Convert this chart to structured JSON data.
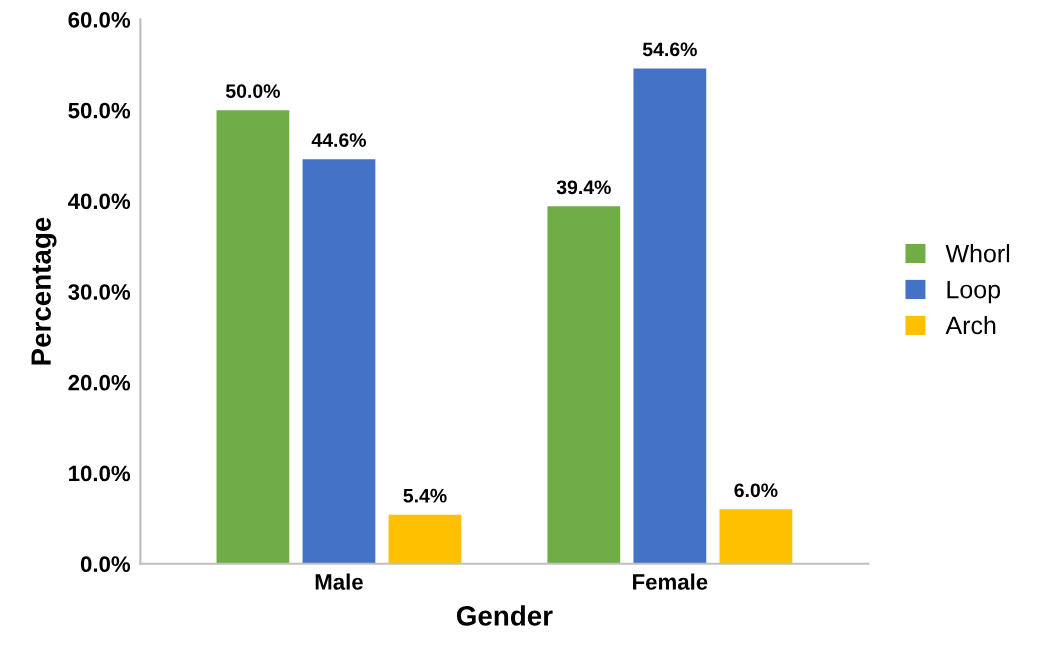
{
  "chart_data": {
    "type": "bar",
    "xlabel": "Gender",
    "ylabel": "Percentage",
    "categories": [
      "Male",
      "Female"
    ],
    "series": [
      {
        "name": "Whorl",
        "color": "#70ad47",
        "values": [
          50.0,
          39.4
        ],
        "value_labels": [
          "50.0%",
          "39.4%"
        ]
      },
      {
        "name": "Loop",
        "color": "#4472c4",
        "values": [
          44.6,
          54.6
        ],
        "value_labels": [
          "44.6%",
          "54.6%"
        ]
      },
      {
        "name": "Arch",
        "color": "#ffc000",
        "values": [
          5.4,
          6.0
        ],
        "value_labels": [
          "5.4%",
          "6.0%"
        ]
      }
    ],
    "ylim": [
      0,
      60
    ],
    "yticks": [
      {
        "value": 0,
        "label": "0.0%"
      },
      {
        "value": 10,
        "label": "10.0%"
      },
      {
        "value": 20,
        "label": "20.0%"
      },
      {
        "value": 30,
        "label": "30.0%"
      },
      {
        "value": 40,
        "label": "40.0%"
      },
      {
        "value": 50,
        "label": "50.0%"
      },
      {
        "value": 60,
        "label": "60.0%"
      }
    ],
    "grid": false,
    "legend": "right"
  }
}
